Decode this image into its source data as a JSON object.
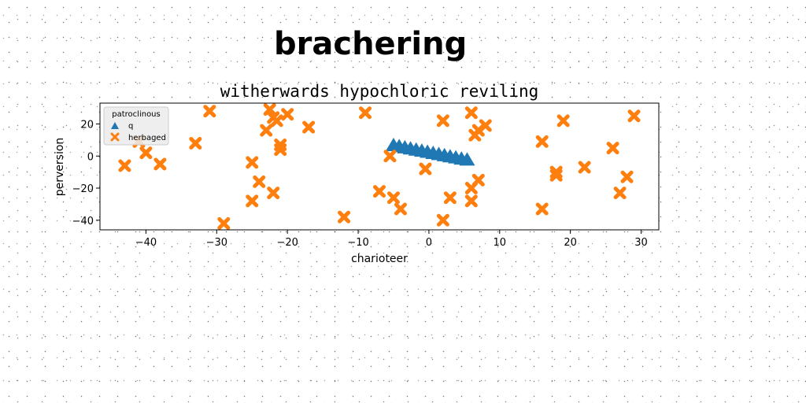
{
  "figure": {
    "title": "brachering"
  },
  "chart_data": {
    "type": "scatter",
    "title": "witherwards hypochloric reviling",
    "xlabel": "charioteer",
    "ylabel": "perversion",
    "xlim": [
      -46.5,
      32.5
    ],
    "ylim": [
      -46,
      33
    ],
    "xticks": [
      -40,
      -30,
      -20,
      -10,
      0,
      10,
      20,
      30
    ],
    "yticks": [
      -40,
      -20,
      0,
      20
    ],
    "xtick_labels": [
      "−40",
      "−30",
      "−20",
      "−10",
      "0",
      "10",
      "20",
      "30"
    ],
    "ytick_labels": [
      "−40",
      "−20",
      "0",
      "20"
    ],
    "grid": false,
    "legend": {
      "title": "patroclinous",
      "placement": "top-left"
    },
    "series": [
      {
        "name": "q",
        "marker": "triangle",
        "color": "#1f77b4",
        "x": [
          -5,
          -4.2,
          -3.4,
          -2.6,
          -1.8,
          -1,
          -0.2,
          0.6,
          1.4,
          2.2,
          3,
          3.8,
          4.6,
          5.4
        ],
        "y": [
          7,
          6.3,
          5.6,
          4.9,
          4.2,
          3.5,
          2.8,
          2.1,
          1.4,
          0.7,
          0,
          -0.7,
          -1.4,
          -2
        ]
      },
      {
        "name": "herbaged",
        "marker": "x",
        "color": "#ff7f0e",
        "x": [
          -43,
          -41,
          -40,
          -38,
          -33,
          -31,
          -29,
          -25,
          -25,
          -24,
          -23,
          -22.5,
          -22,
          -22,
          -21.5,
          -21,
          -21,
          -20,
          -17,
          -12,
          -9,
          -7,
          -5.5,
          -5,
          -4,
          -0.5,
          2,
          2,
          3,
          6,
          6,
          6,
          6.5,
          7,
          7,
          8,
          16,
          16,
          18,
          18,
          19,
          22,
          26,
          27,
          28,
          29
        ],
        "y": [
          -6,
          9,
          2,
          -5,
          8,
          28,
          -42,
          -4,
          -28,
          -16,
          16,
          29,
          24,
          -23,
          22,
          7,
          4,
          26,
          18,
          -38,
          27,
          -22,
          0,
          -26,
          -33,
          -8,
          22,
          -40,
          -26,
          27,
          -20,
          -28,
          13,
          -15,
          16,
          19,
          9,
          -33,
          -10,
          -12,
          22,
          -7,
          5,
          -23,
          -13,
          25
        ]
      }
    ]
  }
}
